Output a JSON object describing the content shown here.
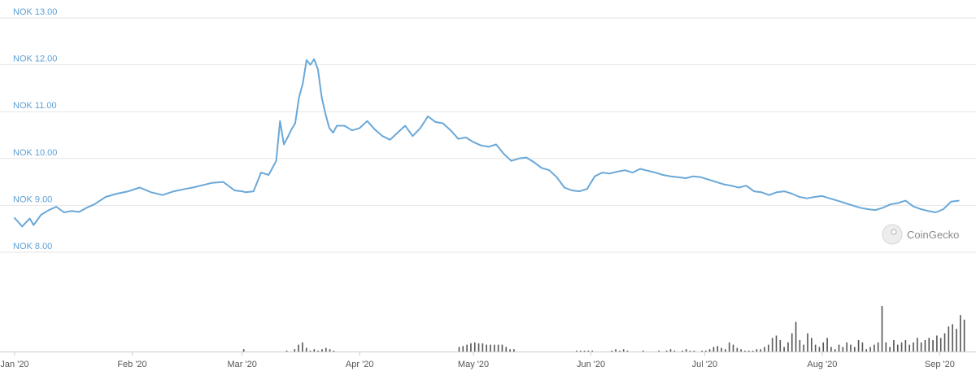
{
  "chart_data": {
    "type": "line",
    "title": "",
    "xlabel": "",
    "ylabel": "",
    "y_prefix": "NOK",
    "ylim": [
      8.0,
      13.0
    ],
    "y_ticks": [
      "NOK 13.00",
      "NOK 12.00",
      "NOK 11.00",
      "NOK 10.00",
      "NOK 9.00",
      "NOK 8.00"
    ],
    "y_tick_values": [
      13,
      12,
      11,
      10,
      9,
      8
    ],
    "x_ticks": [
      "Jan '20",
      "Feb '20",
      "Mar '20",
      "Apr '20",
      "May '20",
      "Jun '20",
      "Jul '20",
      "Aug '20",
      "Sep '20"
    ],
    "x_tick_days": [
      1,
      32,
      61,
      92,
      122,
      153,
      183,
      214,
      245
    ],
    "grid": true,
    "series": [
      {
        "color": "#6aa8d8",
        "x_days": [
          1,
          3,
          5,
          6,
          8,
          10,
          12,
          14,
          16,
          18,
          20,
          22,
          25,
          28,
          31,
          34,
          37,
          40,
          43,
          46,
          48,
          50,
          53,
          56,
          59,
          61,
          62,
          64,
          66,
          68,
          70,
          71,
          72,
          73,
          74,
          75,
          76,
          77,
          78,
          79,
          80,
          81,
          82,
          83,
          84,
          85,
          86,
          88,
          90,
          92,
          94,
          96,
          98,
          100,
          102,
          104,
          106,
          108,
          110,
          112,
          114,
          116,
          118,
          120,
          122,
          124,
          126,
          128,
          130,
          132,
          134,
          136,
          138,
          140,
          142,
          144,
          146,
          148,
          150,
          152,
          154,
          156,
          158,
          160,
          162,
          164,
          166,
          168,
          170,
          172,
          174,
          176,
          178,
          180,
          182,
          184,
          186,
          188,
          190,
          192,
          194,
          196,
          198,
          200,
          202,
          204,
          206,
          208,
          210,
          212,
          214,
          216,
          218,
          220,
          222,
          224,
          226,
          228,
          230,
          232,
          234,
          236,
          238,
          240,
          242,
          244,
          246,
          248,
          250
        ],
        "values": [
          8.73,
          8.55,
          8.72,
          8.58,
          8.8,
          8.9,
          8.97,
          8.85,
          8.88,
          8.86,
          8.95,
          9.02,
          9.18,
          9.25,
          9.3,
          9.38,
          9.28,
          9.22,
          9.3,
          9.35,
          9.38,
          9.42,
          9.48,
          9.5,
          9.32,
          9.3,
          9.28,
          9.3,
          9.7,
          9.65,
          9.95,
          10.8,
          10.3,
          10.45,
          10.62,
          10.75,
          11.3,
          11.6,
          12.1,
          12.0,
          12.12,
          11.9,
          11.3,
          10.95,
          10.65,
          10.55,
          10.7,
          10.7,
          10.6,
          10.65,
          10.8,
          10.62,
          10.48,
          10.4,
          10.55,
          10.7,
          10.48,
          10.65,
          10.9,
          10.78,
          10.75,
          10.6,
          10.42,
          10.45,
          10.35,
          10.28,
          10.25,
          10.3,
          10.1,
          9.95,
          10.0,
          10.02,
          9.92,
          9.8,
          9.75,
          9.6,
          9.38,
          9.32,
          9.3,
          9.35,
          9.62,
          9.7,
          9.68,
          9.72,
          9.75,
          9.7,
          9.78,
          9.74,
          9.7,
          9.65,
          9.62,
          9.6,
          9.58,
          9.62,
          9.6,
          9.55,
          9.5,
          9.45,
          9.42,
          9.38,
          9.42,
          9.3,
          9.28,
          9.22,
          9.28,
          9.3,
          9.25,
          9.18,
          9.15,
          9.18,
          9.2,
          9.15,
          9.1,
          9.05,
          9.0,
          8.95,
          8.92,
          8.9,
          8.95,
          9.02,
          9.05,
          9.1,
          8.98,
          8.92,
          8.88,
          8.85,
          8.92,
          9.08,
          9.1
        ]
      }
    ],
    "volume_bars": [
      0.0,
      0.0,
      0.0,
      0.0,
      0.0,
      0.0,
      0.0,
      0.0,
      0.0,
      0.0,
      0.0,
      0.0,
      0.0,
      0.0,
      0.0,
      0.0,
      0.0,
      0.0,
      0.0,
      0.0,
      0.0,
      0.0,
      0.0,
      0.0,
      0.0,
      0.0,
      0.0,
      0.0,
      0.0,
      0.0,
      0.0,
      0.0,
      0.0,
      0.0,
      0.0,
      0.0,
      0.0,
      0.0,
      0.0,
      0.0,
      0.0,
      0.0,
      0.0,
      0.0,
      0.0,
      0.0,
      0.0,
      0.0,
      0.0,
      0.0,
      0.0,
      0.0,
      0.0,
      0.0,
      0.0,
      0.0,
      0.0,
      0.0,
      0.05,
      0.0,
      0.0,
      0.0,
      0.0,
      0.0,
      0.0,
      0.0,
      0.0,
      0.0,
      0.0,
      0.02,
      0.0,
      0.05,
      0.15,
      0.2,
      0.08,
      0.02,
      0.05,
      0.02,
      0.05,
      0.08,
      0.05,
      0.02,
      0.0,
      0.0,
      0.0,
      0.0,
      0.0,
      0.0,
      0.0,
      0.0,
      0.0,
      0.0,
      0.0,
      0.0,
      0.0,
      0.0,
      0.0,
      0.0,
      0.0,
      0.0,
      0.0,
      0.0,
      0.0,
      0.0,
      0.0,
      0.0,
      0.0,
      0.0,
      0.0,
      0.0,
      0.0,
      0.0,
      0.0,
      0.1,
      0.12,
      0.15,
      0.18,
      0.2,
      0.18,
      0.18,
      0.15,
      0.15,
      0.15,
      0.15,
      0.15,
      0.1,
      0.05,
      0.05,
      0.0,
      0.0,
      0.0,
      0.0,
      0.0,
      0.0,
      0.0,
      0.0,
      0.0,
      0.0,
      0.0,
      0.0,
      0.0,
      0.0,
      0.0,
      0.02,
      0.02,
      0.02,
      0.02,
      0.02,
      0.0,
      0.0,
      0.0,
      0.0,
      0.02,
      0.05,
      0.02,
      0.05,
      0.02,
      0.0,
      0.0,
      0.0,
      0.02,
      0.0,
      0.0,
      0.0,
      0.02,
      0.0,
      0.02,
      0.05,
      0.02,
      0.0,
      0.02,
      0.05,
      0.02,
      0.02,
      0.0,
      0.02,
      0.02,
      0.05,
      0.1,
      0.12,
      0.08,
      0.05,
      0.2,
      0.15,
      0.08,
      0.05,
      0.02,
      0.02,
      0.02,
      0.05,
      0.05,
      0.1,
      0.15,
      0.3,
      0.35,
      0.25,
      0.1,
      0.2,
      0.4,
      0.65,
      0.25,
      0.15,
      0.4,
      0.3,
      0.15,
      0.1,
      0.2,
      0.3,
      0.1,
      0.05,
      0.15,
      0.1,
      0.2,
      0.15,
      0.1,
      0.25,
      0.2,
      0.05,
      0.1,
      0.15,
      0.2,
      1.0,
      0.2,
      0.1,
      0.25,
      0.15,
      0.2,
      0.25,
      0.15,
      0.2,
      0.3,
      0.2,
      0.25,
      0.3,
      0.25,
      0.35,
      0.3,
      0.4,
      0.55,
      0.6,
      0.5,
      0.8,
      0.7
    ]
  },
  "watermark": {
    "text": "CoinGecko",
    "icon": "gecko-logo-icon"
  }
}
